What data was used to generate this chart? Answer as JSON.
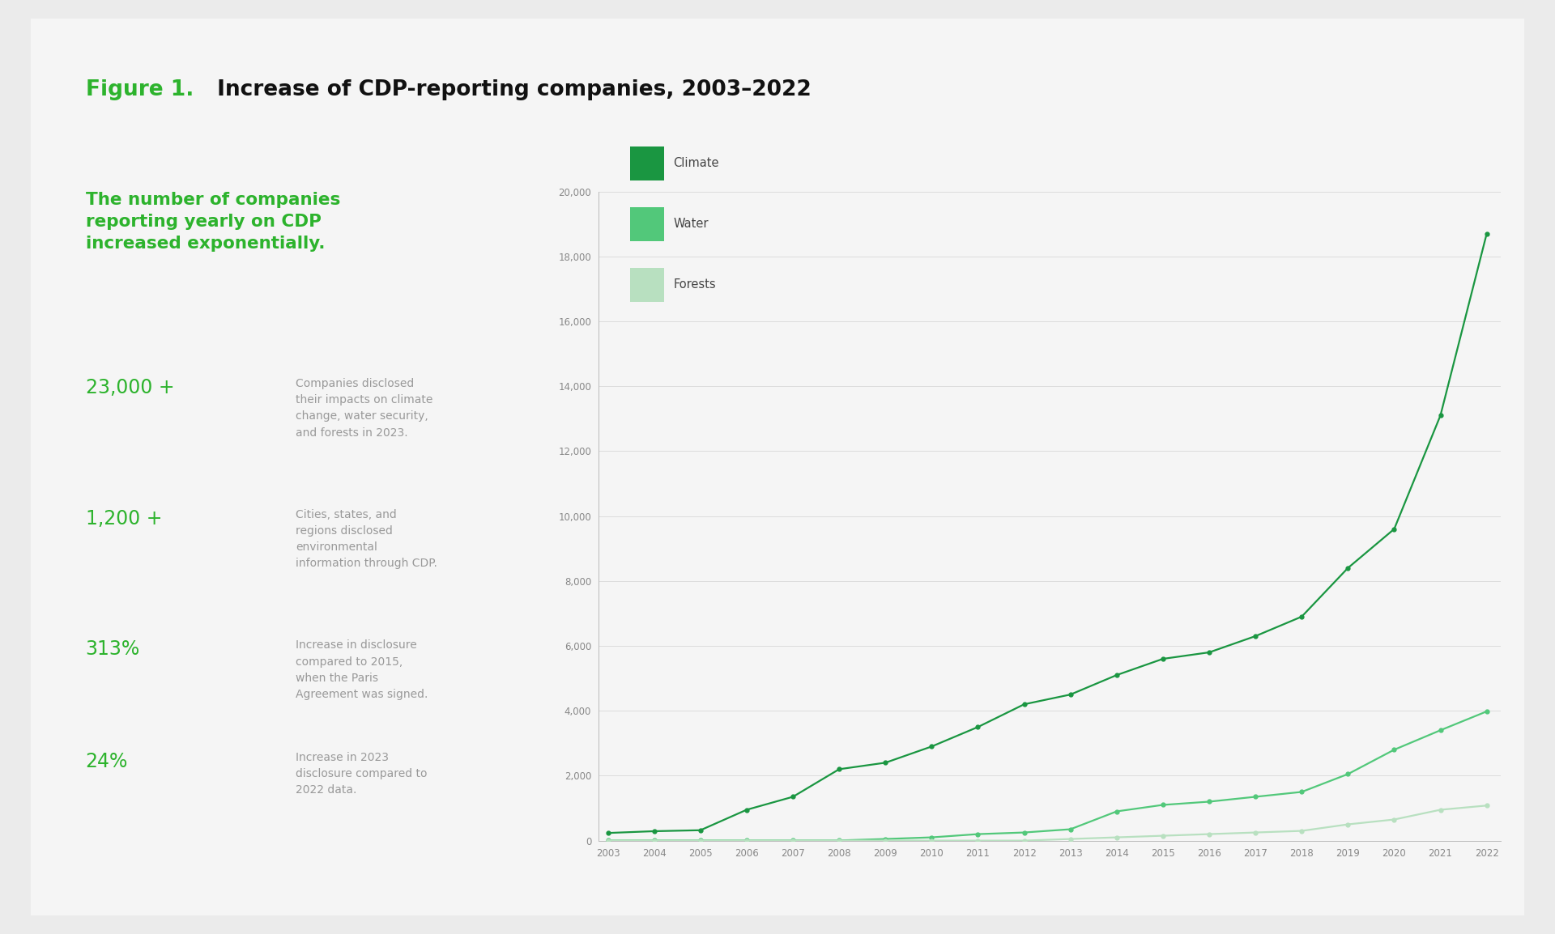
{
  "title_figure": "Figure 1.",
  "title_rest": " Increase of CDP-reporting companies, 2003–2022",
  "subtitle": "The number of companies\nreporting yearly on CDP\nincreased exponentially.",
  "stats": [
    {
      "value": "23,000 +",
      "desc": "Companies disclosed\ntheir impacts on climate\nchange, water security,\nand forests in 2023."
    },
    {
      "value": "1,200 +",
      "desc": "Cities, states, and\nregions disclosed\nenvironmental\ninformation through CDP."
    },
    {
      "value": "313%",
      "desc": "Increase in disclosure\ncompared to 2015,\nwhen the Paris\nAgreement was signed."
    },
    {
      "value": "24%",
      "desc": "Increase in 2023\ndisclosure compared to\n2022 data."
    }
  ],
  "years": [
    2003,
    2004,
    2005,
    2006,
    2007,
    2008,
    2009,
    2010,
    2011,
    2012,
    2013,
    2014,
    2015,
    2016,
    2017,
    2018,
    2019,
    2020,
    2021,
    2022
  ],
  "climate": [
    235,
    290,
    320,
    950,
    1350,
    2200,
    2400,
    2900,
    3500,
    4200,
    4500,
    5100,
    5600,
    5800,
    6300,
    6900,
    8400,
    9600,
    13100,
    18700
  ],
  "water": [
    5,
    5,
    5,
    5,
    5,
    5,
    50,
    100,
    200,
    250,
    350,
    900,
    1100,
    1200,
    1350,
    1500,
    2050,
    2800,
    3400,
    3980
  ],
  "forests": [
    0,
    0,
    0,
    0,
    0,
    0,
    0,
    0,
    0,
    0,
    50,
    100,
    150,
    200,
    250,
    300,
    500,
    650,
    950,
    1080
  ],
  "color_climate": "#1a9641",
  "color_water": "#52c87a",
  "color_forests": "#b8e0c0",
  "bg_color": "#ebebeb",
  "card_color": "#f5f5f5",
  "ylim": [
    0,
    20000
  ],
  "yticks": [
    0,
    2000,
    4000,
    6000,
    8000,
    10000,
    12000,
    14000,
    16000,
    18000,
    20000
  ],
  "legend_labels": [
    "Climate",
    "Water",
    "Forests"
  ],
  "title_green": "#2db32d",
  "title_black": "#111111",
  "stats_green": "#2db32d",
  "stats_gray": "#999999",
  "axis_color": "#bbbbbb",
  "tick_color": "#888888"
}
